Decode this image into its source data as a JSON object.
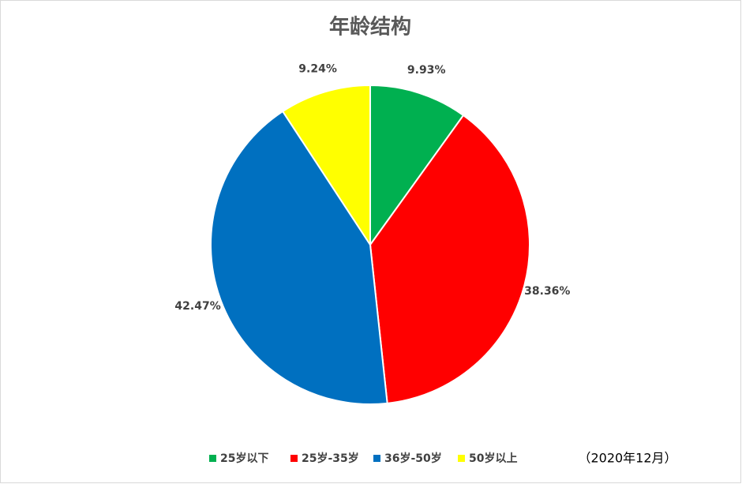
{
  "chart_data": {
    "type": "pie",
    "title": "年龄结构",
    "categories": [
      "25岁以下",
      "25岁-35岁",
      "36岁-50岁",
      "50岁以上"
    ],
    "values": [
      9.93,
      38.36,
      42.47,
      9.24
    ],
    "value_labels": [
      "9.93%",
      "38.36%",
      "42.47%",
      "9.24%"
    ],
    "colors": [
      "#00b050",
      "#ff0000",
      "#0070c0",
      "#ffff00"
    ],
    "annotation": "（2020年12月）"
  }
}
